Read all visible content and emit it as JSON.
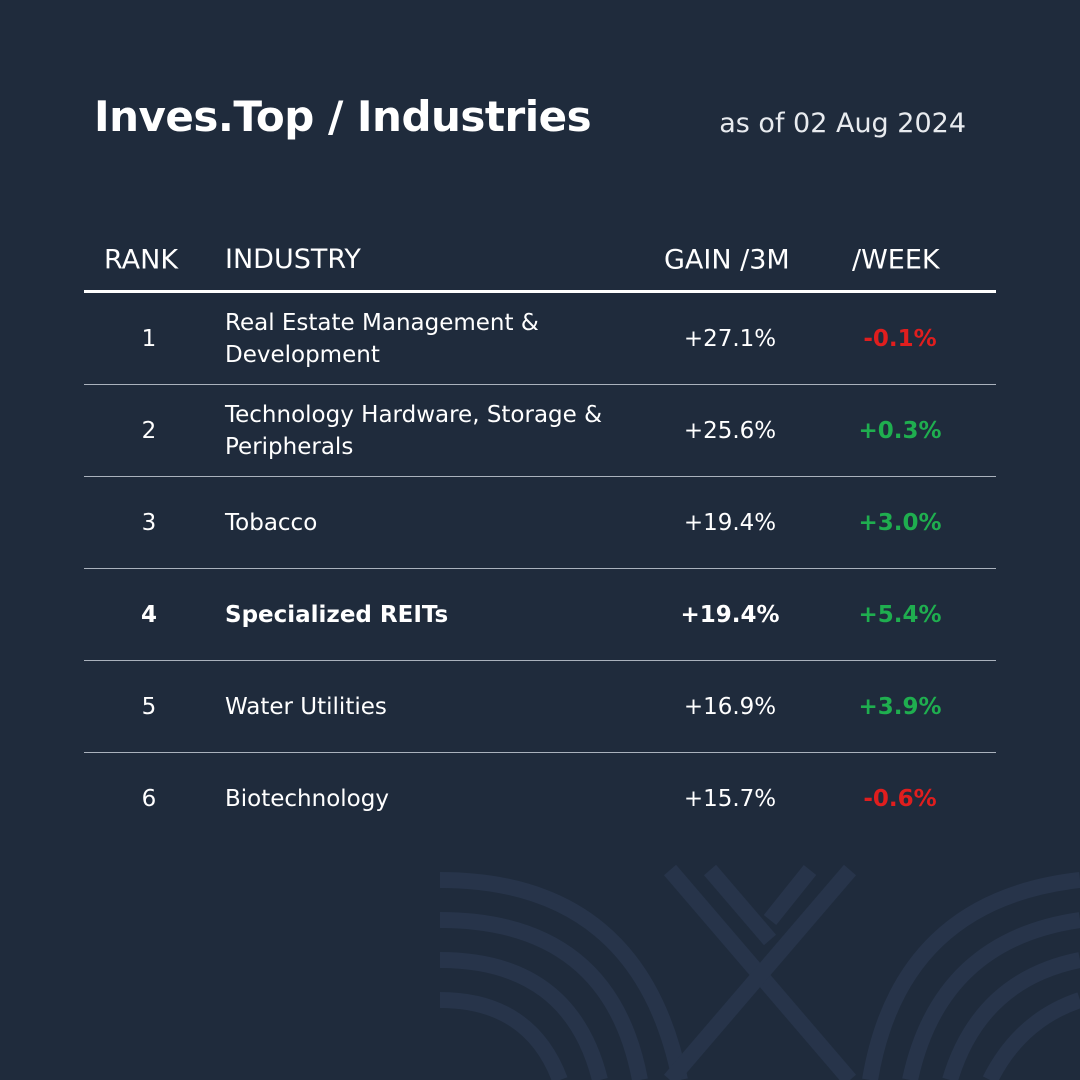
{
  "header": {
    "title": "Inves.Top / Industries",
    "date": "as of 02 Aug 2024"
  },
  "table": {
    "columns": [
      "RANK",
      "INDUSTRY",
      "GAIN /3M",
      "/WEEK"
    ],
    "rows": [
      [
        "1",
        "Real Estate Management & Development",
        "+27.1%",
        "-0.1%"
      ],
      [
        "2",
        "Technology Hardware, Storage & Peripherals",
        "+25.6%",
        "+0.3%"
      ],
      [
        "3",
        "Tobacco",
        "+19.4%",
        "+3.0%"
      ],
      [
        "4",
        "Specialized REITs",
        "+19.4%",
        "+5.4%"
      ],
      [
        "5",
        "Water Utilities",
        "+16.9%",
        "+3.9%"
      ],
      [
        "6",
        "Biotechnology",
        "+15.7%",
        "-0.6%"
      ]
    ]
  }
}
